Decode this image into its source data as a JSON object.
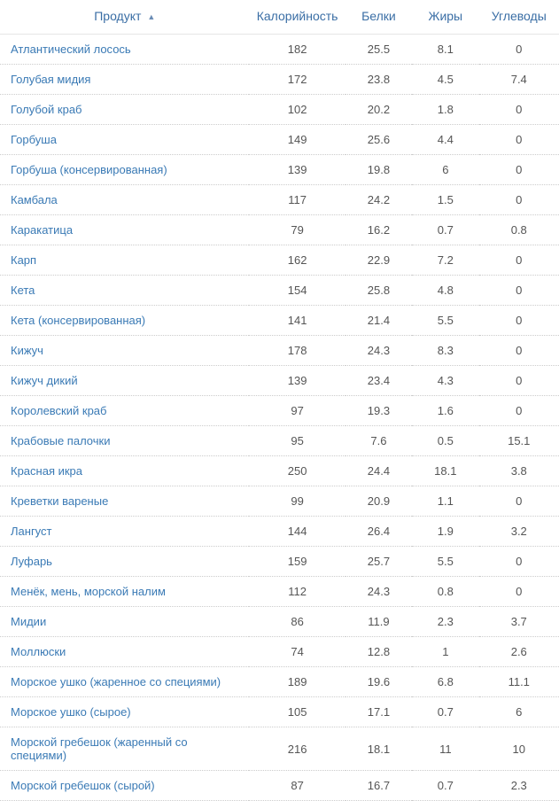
{
  "table": {
    "columns": {
      "product": "Продукт",
      "calories": "Калорийность",
      "protein": "Белки",
      "fat": "Жиры",
      "carbs": "Углеводы"
    },
    "sort_indicator": "▲",
    "rows": [
      {
        "product": "Атлантический лосось",
        "calories": "182",
        "protein": "25.5",
        "fat": "8.1",
        "carbs": "0"
      },
      {
        "product": "Голубая мидия",
        "calories": "172",
        "protein": "23.8",
        "fat": "4.5",
        "carbs": "7.4"
      },
      {
        "product": "Голубой краб",
        "calories": "102",
        "protein": "20.2",
        "fat": "1.8",
        "carbs": "0"
      },
      {
        "product": "Горбуша",
        "calories": "149",
        "protein": "25.6",
        "fat": "4.4",
        "carbs": "0"
      },
      {
        "product": "Горбуша (консервированная)",
        "calories": "139",
        "protein": "19.8",
        "fat": "6",
        "carbs": "0"
      },
      {
        "product": "Камбала",
        "calories": "117",
        "protein": "24.2",
        "fat": "1.5",
        "carbs": "0"
      },
      {
        "product": "Каракатица",
        "calories": "79",
        "protein": "16.2",
        "fat": "0.7",
        "carbs": "0.8"
      },
      {
        "product": "Карп",
        "calories": "162",
        "protein": "22.9",
        "fat": "7.2",
        "carbs": "0"
      },
      {
        "product": "Кета",
        "calories": "154",
        "protein": "25.8",
        "fat": "4.8",
        "carbs": "0"
      },
      {
        "product": "Кета (консервированная)",
        "calories": "141",
        "protein": "21.4",
        "fat": "5.5",
        "carbs": "0"
      },
      {
        "product": "Кижуч",
        "calories": "178",
        "protein": "24.3",
        "fat": "8.3",
        "carbs": "0"
      },
      {
        "product": "Кижуч дикий",
        "calories": "139",
        "protein": "23.4",
        "fat": "4.3",
        "carbs": "0"
      },
      {
        "product": "Королевский краб",
        "calories": "97",
        "protein": "19.3",
        "fat": "1.6",
        "carbs": "0"
      },
      {
        "product": "Крабовые палочки",
        "calories": "95",
        "protein": "7.6",
        "fat": "0.5",
        "carbs": "15.1"
      },
      {
        "product": "Красная икра",
        "calories": "250",
        "protein": "24.4",
        "fat": "18.1",
        "carbs": "3.8"
      },
      {
        "product": "Креветки вареные",
        "calories": "99",
        "protein": "20.9",
        "fat": "1.1",
        "carbs": "0"
      },
      {
        "product": "Лангуст",
        "calories": "144",
        "protein": "26.4",
        "fat": "1.9",
        "carbs": "3.2"
      },
      {
        "product": "Луфарь",
        "calories": "159",
        "protein": "25.7",
        "fat": "5.5",
        "carbs": "0"
      },
      {
        "product": "Менёк, мень, морской налим",
        "calories": "112",
        "protein": "24.3",
        "fat": "0.8",
        "carbs": "0"
      },
      {
        "product": "Мидии",
        "calories": "86",
        "protein": "11.9",
        "fat": "2.3",
        "carbs": "3.7"
      },
      {
        "product": "Моллюски",
        "calories": "74",
        "protein": "12.8",
        "fat": "1",
        "carbs": "2.6"
      },
      {
        "product": "Морское ушко (жаренное со специями)",
        "calories": "189",
        "protein": "19.6",
        "fat": "6.8",
        "carbs": "11.1"
      },
      {
        "product": "Морское ушко (сырое)",
        "calories": "105",
        "protein": "17.1",
        "fat": "0.7",
        "carbs": "6"
      },
      {
        "product": "Морской гребешок (жаренный со специями)",
        "calories": "216",
        "protein": "18.1",
        "fat": "11",
        "carbs": "10"
      },
      {
        "product": "Морской гребешок (сырой)",
        "calories": "87",
        "protein": "16.7",
        "fat": "0.7",
        "carbs": "2.3"
      }
    ]
  }
}
